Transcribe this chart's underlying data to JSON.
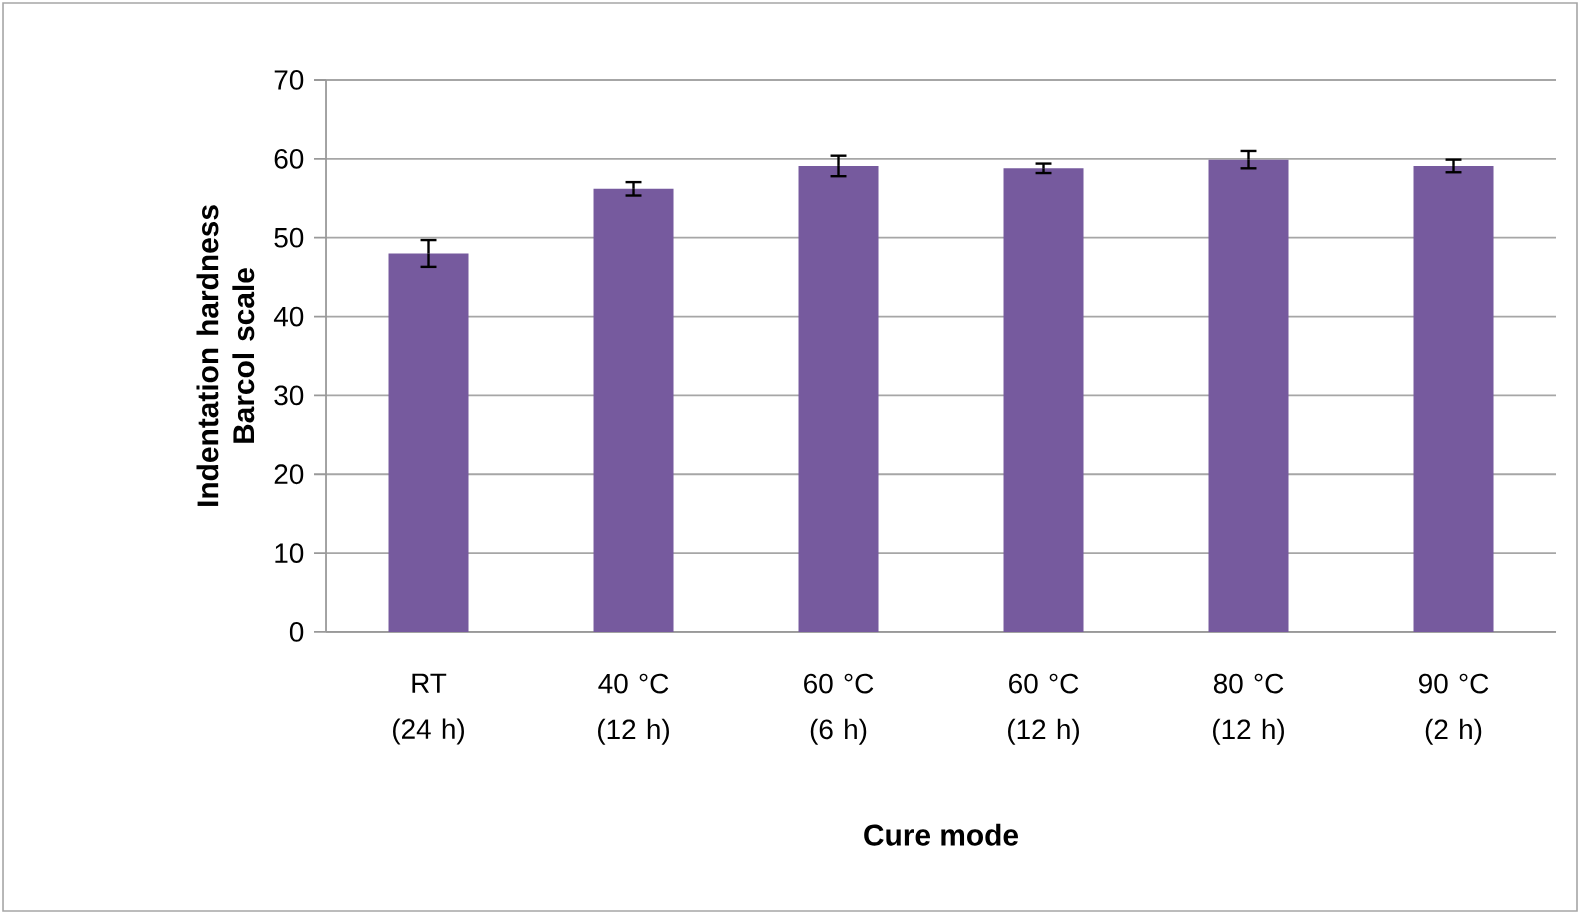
{
  "chart_data": {
    "type": "bar",
    "xlabel": "Cure mode",
    "ylabel": "Indentation hardness Barcol scale",
    "categories": [
      "RT (24 h)",
      "40 °C (12 h)",
      "60 °C (6 h)",
      "60 °C (12 h)",
      "80 °C (12 h)",
      "90 °C (2 h)"
    ],
    "values": [
      48.0,
      56.2,
      59.1,
      58.8,
      59.9,
      59.1
    ],
    "errors": [
      1.7,
      0.85,
      1.3,
      0.6,
      1.1,
      0.8
    ],
    "color": "#765a9e",
    "ylim": [
      0,
      70
    ],
    "yticks": [
      0,
      10,
      20,
      30,
      40,
      50,
      60,
      70
    ],
    "grid": "y"
  }
}
